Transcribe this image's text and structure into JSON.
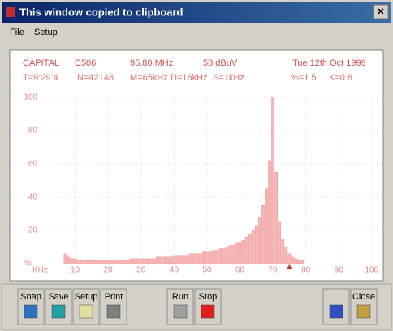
{
  "window": {
    "title": "This window copied to clipboard",
    "close": "×",
    "menu": [
      "File",
      "Setup"
    ]
  },
  "info": {
    "line1": [
      "CAPITAL",
      "C506",
      "95.80 MHz",
      "58 dBuV",
      "Tue 12th Oct 1999"
    ],
    "line2": [
      "T=9:29:4",
      "N=42148",
      "M=65kHz",
      "D=16kHz",
      "S=1kHz",
      "%=1.5",
      "K=0.8"
    ]
  },
  "chart_data": {
    "type": "bar",
    "x": [
      7,
      8,
      9,
      10,
      11,
      12,
      13,
      14,
      15,
      16,
      17,
      18,
      19,
      20,
      21,
      22,
      23,
      24,
      25,
      26,
      27,
      28,
      29,
      30,
      31,
      32,
      33,
      34,
      35,
      36,
      37,
      38,
      39,
      40,
      41,
      42,
      43,
      44,
      45,
      46,
      47,
      48,
      49,
      50,
      51,
      52,
      53,
      54,
      55,
      56,
      57,
      58,
      59,
      60,
      61,
      62,
      63,
      64,
      65,
      66,
      67,
      68,
      69,
      70,
      71,
      72,
      73,
      74,
      75,
      76,
      77,
      78,
      79
    ],
    "values": [
      6,
      4,
      3,
      3,
      2,
      2,
      2,
      2,
      2,
      2,
      2,
      2,
      2,
      2,
      2,
      2,
      2,
      2,
      2,
      2,
      3,
      3,
      3,
      3,
      3,
      3,
      3,
      3,
      4,
      4,
      4,
      4,
      4,
      5,
      5,
      5,
      5,
      5,
      6,
      6,
      6,
      6,
      7,
      7,
      7,
      8,
      8,
      9,
      9,
      10,
      11,
      11,
      12,
      13,
      14,
      16,
      18,
      20,
      23,
      28,
      35,
      45,
      62,
      100,
      55,
      25,
      15,
      10,
      6,
      4,
      3,
      2,
      2
    ],
    "color": "#f6b4b4",
    "xlim": [
      0,
      103
    ],
    "ylim": [
      0,
      100
    ],
    "xticks": [
      10,
      20,
      30,
      40,
      50,
      60,
      70,
      80,
      90,
      100
    ],
    "yticks": [
      20,
      40,
      60,
      80,
      100
    ],
    "x_label": "KHz",
    "y_label": "%",
    "grid": true
  },
  "toolbar": [
    "Snap",
    "Save",
    "Setup",
    "Print",
    "Run",
    "Stop",
    "",
    "Close"
  ]
}
